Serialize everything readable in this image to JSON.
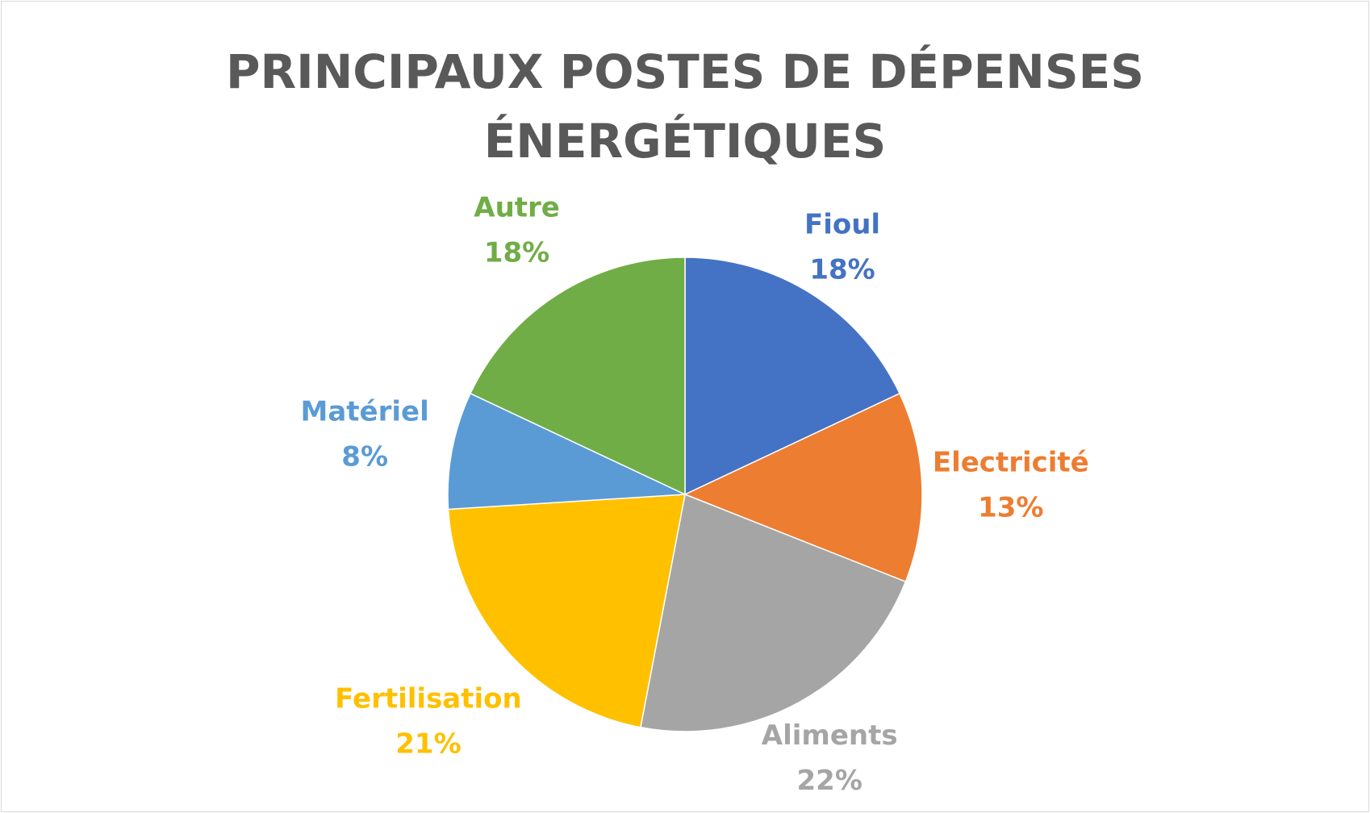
{
  "chart_data": {
    "type": "pie",
    "title": "PRINCIPAUX POSTES DE DÉPENSES ÉNERGÉTIQUES",
    "slices": [
      {
        "name": "Fioul",
        "value": 18,
        "label": "18%",
        "color": "#4472C4"
      },
      {
        "name": "Electricité",
        "value": 13,
        "label": "13%",
        "color": "#ED7D31"
      },
      {
        "name": "Aliments",
        "value": 22,
        "label": "22%",
        "color": "#A5A5A5"
      },
      {
        "name": "Fertilisation",
        "value": 21,
        "label": "21%",
        "color": "#FFC000"
      },
      {
        "name": "Matériel",
        "value": 8,
        "label": "8%",
        "color": "#5B9BD5"
      },
      {
        "name": "Autre",
        "value": 18,
        "label": "18%",
        "color": "#70AD47"
      }
    ],
    "start_angle": "12 o'clock, clockwise",
    "legend": "none",
    "data_labels": "outside, category name and percentage"
  }
}
